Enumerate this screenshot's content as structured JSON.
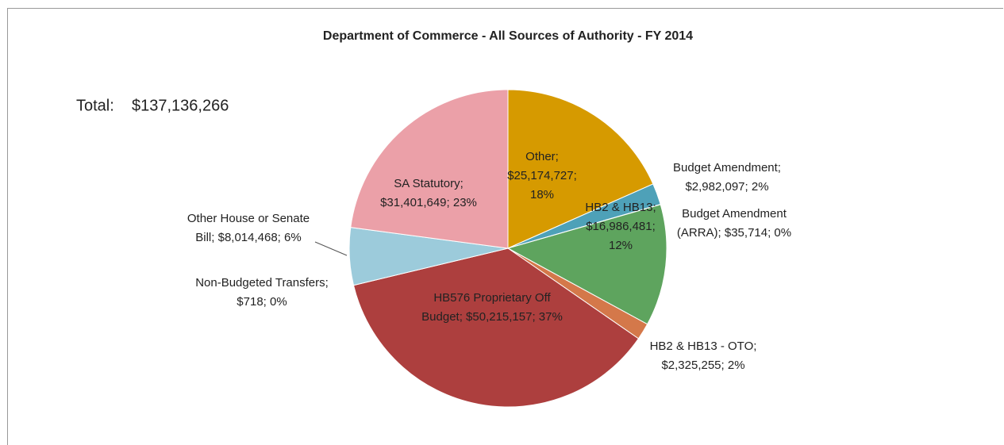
{
  "chart_data": {
    "type": "pie",
    "title": "Department of Commerce - All Sources of Authority - FY 2014",
    "total_label": "Total:",
    "total_value_label": "$137,136,266",
    "label_separator": "; ",
    "categories": [
      "Other",
      "Budget Amendment",
      "Budget Amendment (ARRA)",
      "HB2 & HB13",
      "HB2 & HB13 - OTO",
      "HB576 Proprietary Off Budget",
      "Non-Budgeted Transfers",
      "Other House or Senate Bill",
      "SA Statutory"
    ],
    "values": [
      25174727,
      2982097,
      35714,
      16986481,
      2325255,
      50215157,
      718,
      8014468,
      31401649
    ],
    "value_labels": [
      "$25,174,727",
      "$2,982,097",
      "$35,714",
      "$16,986,481",
      "$2,325,255",
      "$50,215,157",
      "$718",
      "$8,014,468",
      "$31,401,649"
    ],
    "percent_labels": [
      "18%",
      "2%",
      "0%",
      "12%",
      "2%",
      "37%",
      "0%",
      "6%",
      "23%"
    ],
    "colors": [
      "#d69a00",
      "#4ea1b8",
      "#5f9e5f",
      "#5ea45e",
      "#d4784a",
      "#ad3f3e",
      "#9ccbdb",
      "#9ccbdb",
      "#eba0a8"
    ]
  }
}
